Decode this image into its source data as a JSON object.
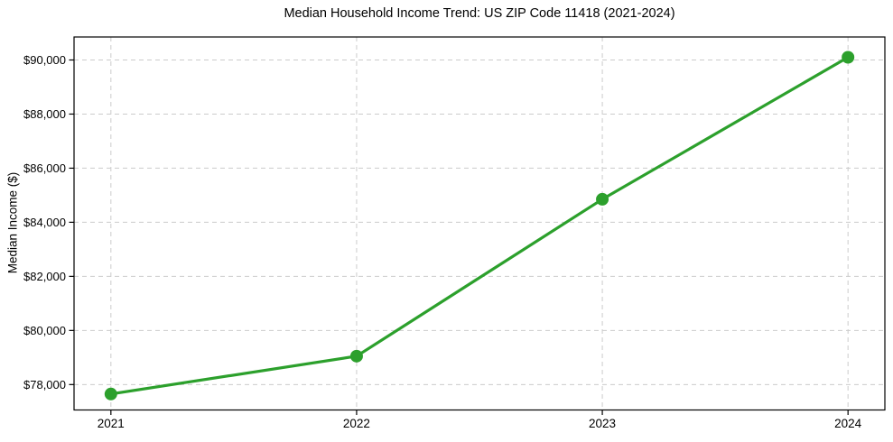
{
  "chart_data": {
    "type": "line",
    "title": "Median Household Income Trend: US ZIP Code 11418 (2021-2024)",
    "xlabel": "",
    "ylabel": "Median Income ($)",
    "x": [
      2021,
      2022,
      2023,
      2024
    ],
    "values": [
      77650,
      79050,
      84850,
      90100
    ],
    "xticks": [
      2021,
      2022,
      2023,
      2024
    ],
    "xtick_labels": [
      "2021",
      "2022",
      "2023",
      "2024"
    ],
    "yticks": [
      78000,
      80000,
      82000,
      84000,
      86000,
      88000,
      90000
    ],
    "ytick_labels": [
      "$78,000",
      "$80,000",
      "$82,000",
      "$84,000",
      "$86,000",
      "$88,000",
      "$90,000"
    ],
    "xlim": [
      2020.85,
      2024.15
    ],
    "ylim": [
      77060,
      90850
    ],
    "grid": true,
    "grid_style": "dashed",
    "legend": "none",
    "marker": "circle",
    "colors": {
      "line": "#2ca02c",
      "marker": "#2ca02c",
      "grid": "#cccccc",
      "spine": "#000000",
      "text": "#000000",
      "background": "#ffffff"
    }
  }
}
